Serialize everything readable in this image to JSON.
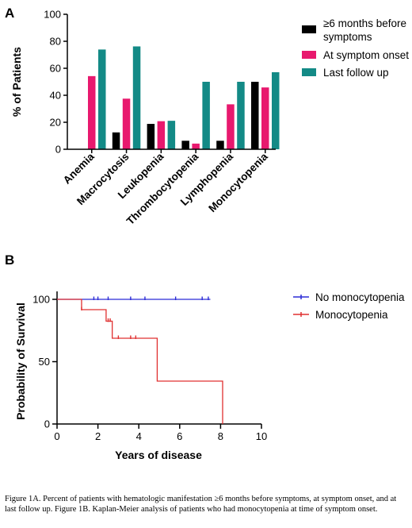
{
  "caption": "Figure 1A. Percent of patients with hematologic manifestation ≥6 months before symptoms, at symptom onset, and at last follow up. Figure 1B. Kaplan-Meier analysis of patients who had monocytopenia at time of symptom onset.",
  "chart_data": [
    {
      "panel_label": "A",
      "type": "bar",
      "ylabel": "% of Patients",
      "ylim": [
        0,
        100
      ],
      "yticks": [
        0,
        20,
        40,
        60,
        80,
        100
      ],
      "categories": [
        "Anemia",
        "Macrocytosis",
        "Leukopenia",
        "Thrombocytopenia",
        "Lymphopenia",
        "Monocytopenia"
      ],
      "series": [
        {
          "name": "≥6 months before symptoms",
          "color": "#000000",
          "values": [
            0,
            12.5,
            18.8,
            6.3,
            6.3,
            50
          ]
        },
        {
          "name": "At symptom onset",
          "color": "#e8196e",
          "values": [
            54.2,
            37.5,
            20.8,
            4.2,
            33.3,
            45.8
          ]
        },
        {
          "name": "Last follow up",
          "color": "#138a86",
          "values": [
            73.9,
            76.2,
            21.1,
            50,
            50,
            57.1
          ]
        }
      ],
      "legend_position": "right",
      "grid": false
    },
    {
      "panel_label": "B",
      "type": "line",
      "subtype": "kaplan-meier",
      "xlabel": "Years of disease",
      "ylabel": "Probability of Survival",
      "xlim": [
        0,
        10
      ],
      "ylim": [
        0,
        100
      ],
      "xticks": [
        0,
        2,
        4,
        6,
        8,
        10
      ],
      "yticks": [
        0,
        50,
        100
      ],
      "series": [
        {
          "name": "No monocytopenia",
          "color": "#2b2bd6",
          "steps": [
            [
              0,
              100
            ],
            [
              7.5,
              100
            ]
          ],
          "censored": [
            [
              1.8,
              100
            ],
            [
              2.0,
              100
            ],
            [
              2.5,
              100
            ],
            [
              3.6,
              100
            ],
            [
              4.3,
              100
            ],
            [
              5.8,
              100
            ],
            [
              7.1,
              100
            ],
            [
              7.4,
              100
            ]
          ]
        },
        {
          "name": "Monocytopenia",
          "color": "#e03030",
          "steps": [
            [
              0,
              100
            ],
            [
              1.2,
              100
            ],
            [
              1.2,
              91.7
            ],
            [
              2.4,
              91.7
            ],
            [
              2.4,
              82.5
            ],
            [
              2.7,
              82.5
            ],
            [
              2.7,
              68.8
            ],
            [
              4.9,
              68.8
            ],
            [
              4.9,
              34.4
            ],
            [
              8.1,
              34.4
            ],
            [
              8.1,
              0
            ]
          ],
          "censored": [
            [
              1.2,
              91.7
            ],
            [
              2.5,
              82.5
            ],
            [
              2.6,
              82.5
            ],
            [
              3.0,
              68.8
            ],
            [
              3.6,
              68.8
            ],
            [
              3.85,
              68.8
            ]
          ]
        }
      ],
      "legend_position": "right",
      "grid": false
    }
  ]
}
